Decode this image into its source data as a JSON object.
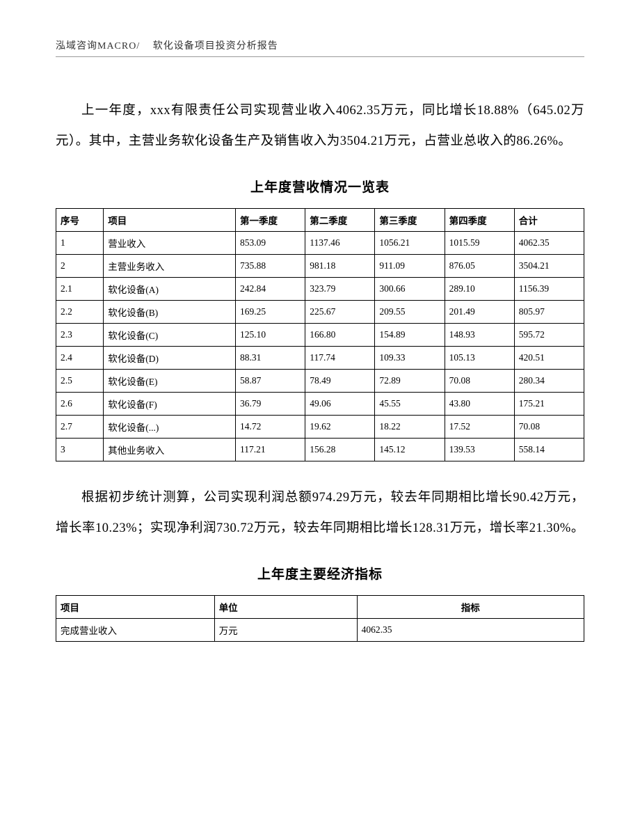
{
  "header": {
    "left": "泓域咨询MACRO/",
    "right": "软化设备项目投资分析报告"
  },
  "paragraph1": "上一年度，xxx有限责任公司实现营业收入4062.35万元，同比增长18.88%（645.02万元）。其中，主营业务软化设备生产及销售收入为3504.21万元，占营业总收入的86.26%。",
  "table1": {
    "title": "上年度营收情况一览表",
    "headers": [
      "序号",
      "项目",
      "第一季度",
      "第二季度",
      "第三季度",
      "第四季度",
      "合计"
    ],
    "rows": [
      [
        "1",
        "营业收入",
        "853.09",
        "1137.46",
        "1056.21",
        "1015.59",
        "4062.35"
      ],
      [
        "2",
        "主营业务收入",
        "735.88",
        "981.18",
        "911.09",
        "876.05",
        "3504.21"
      ],
      [
        "2.1",
        "软化设备(A)",
        "242.84",
        "323.79",
        "300.66",
        "289.10",
        "1156.39"
      ],
      [
        "2.2",
        "软化设备(B)",
        "169.25",
        "225.67",
        "209.55",
        "201.49",
        "805.97"
      ],
      [
        "2.3",
        "软化设备(C)",
        "125.10",
        "166.80",
        "154.89",
        "148.93",
        "595.72"
      ],
      [
        "2.4",
        "软化设备(D)",
        "88.31",
        "117.74",
        "109.33",
        "105.13",
        "420.51"
      ],
      [
        "2.5",
        "软化设备(E)",
        "58.87",
        "78.49",
        "72.89",
        "70.08",
        "280.34"
      ],
      [
        "2.6",
        "软化设备(F)",
        "36.79",
        "49.06",
        "45.55",
        "43.80",
        "175.21"
      ],
      [
        "2.7",
        "软化设备(...)",
        "14.72",
        "19.62",
        "18.22",
        "17.52",
        "70.08"
      ],
      [
        "3",
        "其他业务收入",
        "117.21",
        "156.28",
        "145.12",
        "139.53",
        "558.14"
      ]
    ]
  },
  "paragraph2": "根据初步统计测算，公司实现利润总额974.29万元，较去年同期相比增长90.42万元，增长率10.23%；实现净利润730.72万元，较去年同期相比增长128.31万元，增长率21.30%。",
  "table2": {
    "title": "上年度主要经济指标",
    "headers": [
      "项目",
      "单位",
      "指标"
    ],
    "rows": [
      [
        "完成营业收入",
        "万元",
        "4062.35"
      ]
    ]
  }
}
